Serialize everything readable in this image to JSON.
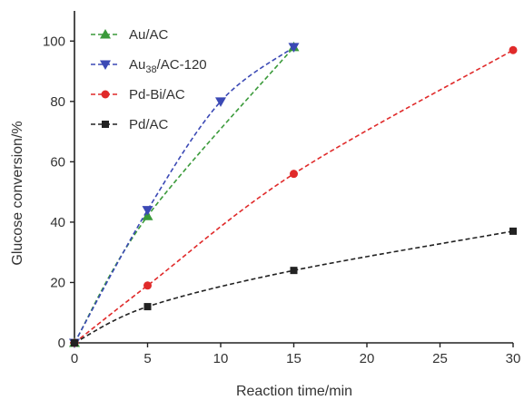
{
  "chart_data": {
    "type": "line",
    "xlabel": "Reaction time/min",
    "ylabel": "Glucose conversion/%",
    "xlim": [
      0,
      30
    ],
    "ylim": [
      0,
      110
    ],
    "x_ticks": [
      0,
      5,
      10,
      15,
      20,
      25,
      30
    ],
    "y_ticks": [
      0,
      20,
      40,
      60,
      80,
      100
    ],
    "x_tick_labels": [
      "0",
      "5",
      "10",
      "15",
      "20",
      "25",
      "30"
    ],
    "y_tick_labels": [
      "0",
      "20",
      "40",
      "60",
      "80",
      "100"
    ],
    "grid": false,
    "legend_position": "top-left",
    "series": [
      {
        "name": "Au/AC",
        "legend": {
          "base": "Au/AC",
          "sub": "",
          "rest": ""
        },
        "color": "#3a9a3a",
        "marker": "triangle-up",
        "x": [
          0,
          5,
          15
        ],
        "y": [
          0,
          42,
          98
        ]
      },
      {
        "name": "Au38/AC-120",
        "legend": {
          "base": "Au",
          "sub": "38",
          "rest": "/AC-120"
        },
        "color": "#3b49b5",
        "marker": "triangle-down",
        "x": [
          0,
          5,
          10,
          15
        ],
        "y": [
          0,
          44,
          80,
          98
        ]
      },
      {
        "name": "Pd-Bi/AC",
        "legend": {
          "base": "Pd-Bi/AC",
          "sub": "",
          "rest": ""
        },
        "color": "#e02a2a",
        "marker": "circle",
        "x": [
          0,
          5,
          15,
          30
        ],
        "y": [
          0,
          19,
          56,
          97
        ]
      },
      {
        "name": "Pd/AC",
        "legend": {
          "base": "Pd/AC",
          "sub": "",
          "rest": ""
        },
        "color": "#222222",
        "marker": "square",
        "x": [
          0,
          5,
          15,
          30
        ],
        "y": [
          0,
          12,
          24,
          37
        ]
      }
    ]
  }
}
